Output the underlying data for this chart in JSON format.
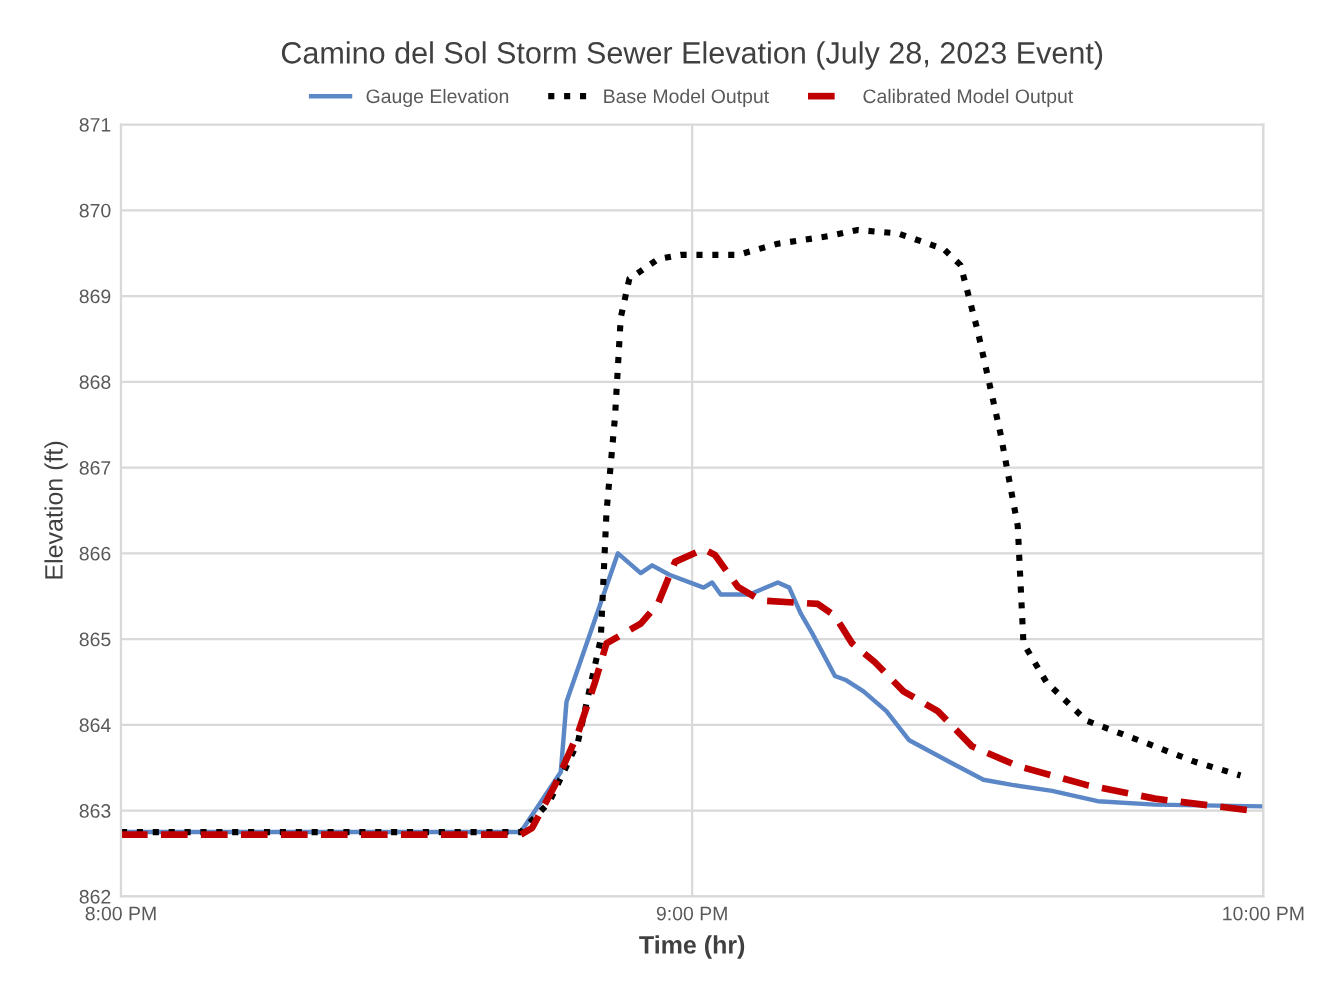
{
  "chart_data": {
    "type": "line",
    "title": "Camino del Sol Storm Sewer Elevation (July 28, 2023 Event)",
    "xlabel": "Time (hr)",
    "ylabel": "Elevation (ft)",
    "xlim": [
      20,
      22
    ],
    "xticks": [
      {
        "value": 20,
        "label": "8:00 PM"
      },
      {
        "value": 21,
        "label": "9:00 PM"
      },
      {
        "value": 22,
        "label": "10:00 PM"
      }
    ],
    "ylim": [
      862,
      871
    ],
    "yticks": [
      862,
      863,
      864,
      865,
      866,
      867,
      868,
      869,
      870,
      871
    ],
    "grid": true,
    "legend": "top",
    "marker": "none",
    "series": [
      {
        "name": "Gauge Elevation",
        "color": "#5b87c7",
        "line_style": "solid",
        "x": [
          20,
          20.7,
          20.77,
          20.78,
          20.87,
          20.91,
          20.93,
          20.96,
          21.02,
          21.035,
          21.05,
          21.1,
          21.15,
          21.17,
          21.19,
          21.21,
          21.25,
          21.27,
          21.3,
          21.34,
          21.38,
          21.45,
          21.51,
          21.56,
          21.63,
          21.71,
          21.81,
          22.0
        ],
        "values": [
          862.75,
          862.75,
          863.45,
          864.27,
          866.0,
          865.77,
          865.86,
          865.75,
          865.6,
          865.66,
          865.52,
          865.52,
          865.66,
          865.6,
          865.3,
          865.07,
          864.57,
          864.52,
          864.39,
          864.16,
          863.82,
          863.57,
          863.36,
          863.3,
          863.23,
          863.11,
          863.07,
          863.05
        ]
      },
      {
        "name": "Base Model Output",
        "color": "#000000",
        "line_style": "dotted",
        "x": [
          20,
          20.7,
          20.75,
          20.8,
          20.84,
          20.85,
          20.865,
          20.875,
          20.89,
          20.94,
          20.98,
          21.08,
          21.15,
          21.24,
          21.29,
          21.36,
          21.44,
          21.47,
          21.5,
          21.54,
          21.57,
          21.58,
          21.62,
          21.69,
          21.81,
          21.88,
          21.96
        ],
        "values": [
          862.75,
          862.75,
          863.1,
          863.8,
          865.0,
          866.48,
          867.6,
          868.75,
          869.2,
          869.43,
          869.48,
          869.48,
          869.61,
          869.7,
          869.77,
          869.73,
          869.55,
          869.36,
          868.59,
          867.39,
          866.32,
          864.95,
          864.5,
          864.05,
          863.75,
          863.57,
          863.41
        ]
      },
      {
        "name": "Calibrated Model Output",
        "color": "#c00000",
        "line_style": "dashed",
        "x": [
          20,
          20.7,
          20.72,
          20.76,
          20.8,
          20.83,
          20.85,
          20.91,
          20.94,
          20.97,
          21.02,
          21.04,
          21.08,
          21.12,
          21.22,
          21.25,
          21.28,
          21.32,
          21.37,
          21.43,
          21.49,
          21.57,
          21.69,
          21.81,
          21.98
        ],
        "values": [
          862.72,
          862.72,
          862.8,
          863.3,
          863.9,
          864.5,
          864.95,
          865.18,
          865.41,
          865.9,
          866.05,
          865.98,
          865.61,
          865.45,
          865.41,
          865.27,
          864.95,
          864.73,
          864.39,
          864.16,
          863.75,
          863.52,
          863.3,
          863.14,
          863.0
        ]
      }
    ]
  }
}
